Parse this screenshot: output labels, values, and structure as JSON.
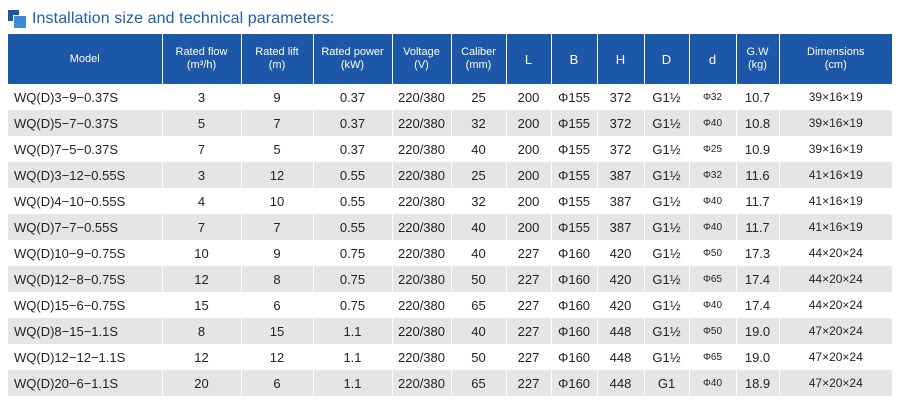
{
  "title": "Installation size and technical parameters:",
  "colors": {
    "header_bg": "#1d57a7",
    "title": "#1b5fae",
    "stripe": "#e4e5e7"
  },
  "columns": [
    {
      "line1": "Model",
      "line2": ""
    },
    {
      "line1": "Rated flow",
      "line2": "(m³/h)"
    },
    {
      "line1": "Rated lift",
      "line2": "(m)"
    },
    {
      "line1": "Rated power",
      "line2": "(kW)"
    },
    {
      "line1": "Voltage",
      "line2": "(V)"
    },
    {
      "line1": "Caliber",
      "line2": "(mm)"
    },
    {
      "line1": "L",
      "line2": ""
    },
    {
      "line1": "B",
      "line2": ""
    },
    {
      "line1": "H",
      "line2": ""
    },
    {
      "line1": "D",
      "line2": ""
    },
    {
      "line1": "d",
      "line2": ""
    },
    {
      "line1": "G.W",
      "line2": "(kg)"
    },
    {
      "line1": "Dimensions",
      "line2": "(cm)"
    }
  ],
  "rows": [
    [
      "WQ(D)3−9−0.37S",
      "3",
      "9",
      "0.37",
      "220/380",
      "25",
      "200",
      "Φ155",
      "372",
      "G1½",
      "Φ32",
      "10.7",
      "39×16×19"
    ],
    [
      "WQ(D)5−7−0.37S",
      "5",
      "7",
      "0.37",
      "220/380",
      "32",
      "200",
      "Φ155",
      "372",
      "G1½",
      "Φ40",
      "10.8",
      "39×16×19"
    ],
    [
      "WQ(D)7−5−0.37S",
      "7",
      "5",
      "0.37",
      "220/380",
      "40",
      "200",
      "Φ155",
      "372",
      "G1½",
      "Φ25",
      "10.9",
      "39×16×19"
    ],
    [
      "WQ(D)3−12−0.55S",
      "3",
      "12",
      "0.55",
      "220/380",
      "25",
      "200",
      "Φ155",
      "387",
      "G1½",
      "Φ32",
      "11.6",
      "41×16×19"
    ],
    [
      "WQ(D)4−10−0.55S",
      "4",
      "10",
      "0.55",
      "220/380",
      "32",
      "200",
      "Φ155",
      "387",
      "G1½",
      "Φ40",
      "11.7",
      "41×16×19"
    ],
    [
      "WQ(D)7−7−0.55S",
      "7",
      "7",
      "0.55",
      "220/380",
      "40",
      "200",
      "Φ155",
      "387",
      "G1½",
      "Φ40",
      "11.7",
      "41×16×19"
    ],
    [
      "WQ(D)10−9−0.75S",
      "10",
      "9",
      "0.75",
      "220/380",
      "40",
      "227",
      "Φ160",
      "420",
      "G1½",
      "Φ50",
      "17.3",
      "44×20×24"
    ],
    [
      "WQ(D)12−8−0.75S",
      "12",
      "8",
      "0.75",
      "220/380",
      "50",
      "227",
      "Φ160",
      "420",
      "G1½",
      "Φ65",
      "17.4",
      "44×20×24"
    ],
    [
      "WQ(D)15−6−0.75S",
      "15",
      "6",
      "0.75",
      "220/380",
      "65",
      "227",
      "Φ160",
      "420",
      "G1½",
      "Φ40",
      "17.4",
      "44×20×24"
    ],
    [
      "WQ(D)8−15−1.1S",
      "8",
      "15",
      "1.1",
      "220/380",
      "40",
      "227",
      "Φ160",
      "448",
      "G1½",
      "Φ50",
      "19.0",
      "47×20×24"
    ],
    [
      "WQ(D)12−12−1.1S",
      "12",
      "12",
      "1.1",
      "220/380",
      "50",
      "227",
      "Φ160",
      "448",
      "G1½",
      "Φ65",
      "19.0",
      "47×20×24"
    ],
    [
      "WQ(D)20−6−1.1S",
      "20",
      "6",
      "1.1",
      "220/380",
      "65",
      "227",
      "Φ160",
      "448",
      "G1",
      "Φ40",
      "18.9",
      "47×20×24"
    ]
  ]
}
